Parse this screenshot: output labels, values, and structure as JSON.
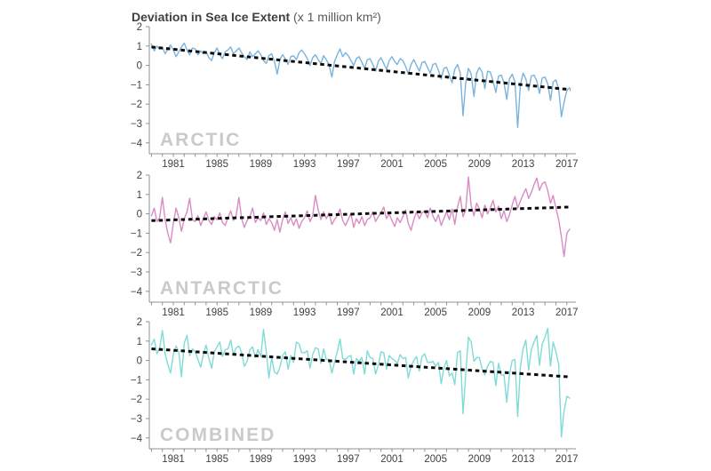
{
  "title": {
    "main": "Deviation in Sea Ice Extent",
    "unit": " (x 1 million km²)"
  },
  "palette": {
    "background": "#ffffff",
    "axis_line": "#919195",
    "tick_text": "#414042",
    "title_main": "#414042",
    "title_unit": "#58595b",
    "trend_line": "#0a0a0a",
    "watermark_text": "#c9cacc",
    "arctic_line": "#7ab3dc",
    "antarctic_line": "#d98cc4",
    "combined_line": "#7fdbd6"
  },
  "axis": {
    "x_label_years": [
      1981,
      1985,
      1989,
      1993,
      1997,
      2001,
      2005,
      2009,
      2013,
      2017
    ],
    "x_minor_tick_from": 1979,
    "x_minor_tick_to": 2017,
    "y_tick_values": [
      2,
      1,
      0,
      -1,
      -2,
      -3,
      -4
    ],
    "y_tick_labels": [
      "2",
      "1",
      "0",
      "−1",
      "−2",
      "−3",
      "−4"
    ],
    "x_range": [
      1978.8,
      2017.5
    ],
    "ylim": [
      -4,
      2
    ],
    "grid": "off",
    "legend": "none"
  },
  "chart_data": [
    {
      "type": "line",
      "title": "ARCTIC",
      "color": "#7ab3dc",
      "x_start": 1979,
      "x_step": 0.25,
      "values": [
        1.1,
        0.75,
        1.0,
        0.85,
        0.95,
        0.6,
        0.85,
        1.05,
        0.8,
        0.45,
        0.7,
        0.95,
        1.15,
        0.8,
        0.55,
        0.9,
        0.85,
        0.55,
        0.75,
        0.6,
        0.7,
        0.4,
        0.25,
        0.65,
        0.9,
        0.55,
        0.35,
        0.7,
        0.8,
        0.95,
        0.6,
        0.75,
        0.9,
        0.65,
        0.45,
        0.3,
        0.7,
        0.45,
        0.6,
        0.75,
        0.55,
        0.25,
        0.1,
        0.5,
        0.6,
        0.2,
        -0.45,
        0.3,
        0.55,
        0.35,
        0.05,
        0.45,
        0.5,
        0.3,
        0.65,
        0.8,
        0.6,
        0.35,
        0.0,
        0.4,
        0.55,
        0.3,
        0.1,
        0.5,
        0.3,
        0.0,
        -0.6,
        0.2,
        0.55,
        0.85,
        0.45,
        0.65,
        0.5,
        0.25,
        0.0,
        0.35,
        0.45,
        0.15,
        -0.15,
        0.3,
        0.35,
        0.05,
        -0.3,
        0.2,
        0.4,
        0.1,
        -0.2,
        0.25,
        0.45,
        0.2,
        0.05,
        0.35,
        0.25,
        -0.05,
        -0.45,
        0.05,
        0.3,
        0.0,
        -0.3,
        0.15,
        0.2,
        -0.1,
        -0.4,
        0.05,
        0.1,
        -0.25,
        -0.7,
        -0.15,
        -0.1,
        -0.5,
        -0.9,
        -0.2,
        0.05,
        -0.4,
        -2.6,
        -0.9,
        -0.15,
        -0.45,
        -1.6,
        -0.4,
        -0.1,
        -0.35,
        -1.2,
        -0.3,
        -0.35,
        -0.8,
        -1.4,
        -0.55,
        -0.5,
        -0.9,
        -1.75,
        -0.7,
        -0.45,
        -0.85,
        -3.2,
        -1.0,
        -0.4,
        -0.7,
        -1.3,
        -0.55,
        -0.5,
        -0.8,
        -1.45,
        -0.65,
        -0.6,
        -0.95,
        -1.8,
        -0.85,
        -0.75,
        -1.2,
        -2.65,
        -1.9,
        -1.3,
        -1.15
      ],
      "trend": {
        "x": [
          1979,
          2017.3
        ],
        "y": [
          0.95,
          -1.25
        ]
      }
    },
    {
      "type": "line",
      "title": "ANTARCTIC",
      "color": "#d98cc4",
      "x_start": 1979,
      "x_step": 0.25,
      "values": [
        -0.1,
        0.3,
        -0.4,
        -0.2,
        0.85,
        -0.3,
        -1.0,
        -1.5,
        -0.5,
        0.3,
        -0.2,
        -0.9,
        -0.25,
        0.1,
        0.8,
        -0.3,
        -0.4,
        -0.1,
        -0.6,
        -0.25,
        0.1,
        -0.35,
        -0.55,
        -0.15,
        -0.3,
        0.05,
        -0.45,
        -0.6,
        -0.2,
        0.15,
        -0.35,
        -0.1,
        0.85,
        -0.25,
        -0.7,
        -0.35,
        -0.15,
        0.3,
        -0.45,
        -0.2,
        -0.35,
        0.05,
        -0.55,
        -0.25,
        -0.45,
        -0.85,
        -0.3,
        -0.95,
        -0.3,
        0.1,
        -0.5,
        -0.2,
        -0.6,
        -0.25,
        -0.75,
        -0.4,
        -0.2,
        0.15,
        -0.4,
        -0.1,
        0.95,
        0.2,
        -0.3,
        0.1,
        -0.25,
        0.05,
        -0.55,
        -0.3,
        -0.1,
        0.25,
        -0.35,
        -0.6,
        -0.3,
        0.0,
        -0.7,
        -0.25,
        -0.5,
        -0.15,
        -0.6,
        -0.3,
        -0.2,
        0.1,
        -0.4,
        -0.15,
        0.05,
        0.35,
        -0.25,
        0.0,
        -0.35,
        -0.65,
        -0.2,
        -0.45,
        -0.15,
        0.2,
        -0.5,
        -0.85,
        -0.3,
        0.1,
        -0.25,
        0.05,
        0.15,
        -0.2,
        0.3,
        -0.1,
        -0.4,
        -0.05,
        -0.6,
        -0.25,
        0.1,
        -0.3,
        0.25,
        -0.55,
        0.35,
        0.9,
        -0.15,
        0.2,
        1.9,
        0.4,
        -0.1,
        0.55,
        0.25,
        -0.2,
        0.45,
        0.0,
        0.3,
        0.7,
        0.1,
        0.4,
        -0.25,
        0.15,
        -0.4,
        -0.05,
        0.45,
        0.9,
        0.3,
        0.65,
        1.0,
        1.3,
        0.8,
        1.1,
        1.5,
        1.85,
        1.2,
        1.55,
        1.65,
        1.2,
        0.55,
        0.95,
        0.3,
        -0.3,
        -1.2,
        -2.2,
        -1.0,
        -0.8
      ],
      "trend": {
        "x": [
          1979,
          2017.3
        ],
        "y": [
          -0.35,
          0.35
        ]
      }
    },
    {
      "type": "line",
      "title": "COMBINED",
      "color": "#7fdbd6",
      "x_start": 1979,
      "x_step": 0.25,
      "values": [
        0.8,
        1.1,
        0.35,
        0.6,
        1.55,
        0.35,
        -0.2,
        -0.65,
        0.3,
        0.75,
        0.45,
        -0.85,
        0.9,
        1.3,
        0.25,
        0.6,
        0.45,
        0.05,
        -0.35,
        0.3,
        0.8,
        0.1,
        -0.4,
        0.45,
        0.7,
        0.95,
        0.2,
        0.55,
        0.6,
        1.05,
        0.3,
        0.65,
        0.75,
        0.4,
        -0.3,
        -0.05,
        0.55,
        0.7,
        0.15,
        0.55,
        0.2,
        1.6,
        0.45,
        -0.9,
        0.15,
        -0.6,
        -0.7,
        -0.35,
        0.25,
        0.45,
        -0.45,
        0.25,
        -0.1,
        0.95,
        0.85,
        0.4,
        0.4,
        0.5,
        -0.4,
        0.3,
        0.65,
        0.6,
        -0.15,
        0.6,
        0.05,
        0.05,
        -0.65,
        -0.1,
        0.45,
        1.1,
        0.1,
        0.05,
        0.2,
        0.25,
        -0.7,
        0.1,
        -0.05,
        0.15,
        -0.7,
        0.5,
        0.15,
        0.1,
        -0.7,
        -0.25,
        0.45,
        0.4,
        -0.45,
        0.25,
        0.1,
        0.0,
        -0.15,
        0.3,
        0.1,
        0.15,
        -0.9,
        -0.3,
        0.0,
        0.2,
        -0.55,
        0.2,
        0.35,
        -0.1,
        -0.1,
        -0.05,
        -0.3,
        -0.1,
        -1.2,
        -0.4,
        0.0,
        -0.8,
        -0.65,
        -1.25,
        0.4,
        0.5,
        -2.75,
        -0.7,
        1.2,
        0.95,
        -0.05,
        0.15,
        0.15,
        -0.45,
        -0.75,
        -0.3,
        -0.05,
        -0.1,
        -1.3,
        -0.15,
        -0.75,
        -0.75,
        -2.15,
        -0.75,
        0.0,
        0.05,
        -2.9,
        -0.35,
        0.6,
        1.05,
        -0.5,
        0.55,
        0.95,
        1.3,
        -0.25,
        0.85,
        1.2,
        1.65,
        -0.3,
        0.95,
        0.45,
        -0.2,
        -3.95,
        -2.6,
        -1.85,
        -1.95
      ],
      "trend": {
        "x": [
          1979,
          2017.3
        ],
        "y": [
          0.6,
          -0.85
        ]
      }
    }
  ]
}
